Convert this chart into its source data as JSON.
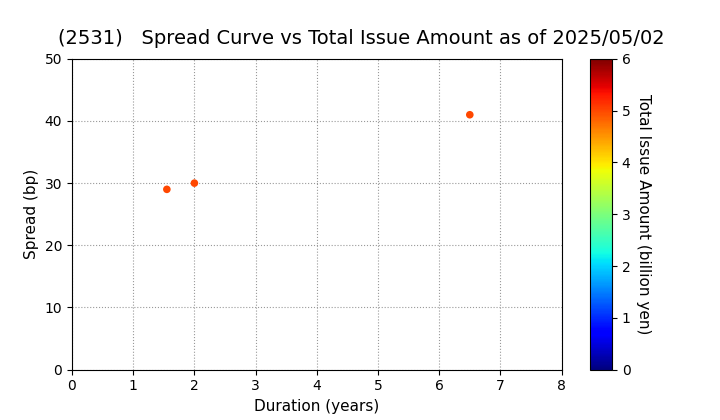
{
  "title": "(2531)   Spread Curve vs Total Issue Amount as of 2025/05/02",
  "xlabel": "Duration (years)",
  "ylabel": "Spread (bp)",
  "colorbar_label": "Total Issue Amount (billion yen)",
  "points": [
    {
      "duration": 1.55,
      "spread": 29,
      "issue_amount": 5.0
    },
    {
      "duration": 2.0,
      "spread": 30,
      "issue_amount": 5.0
    },
    {
      "duration": 6.5,
      "spread": 41,
      "issue_amount": 5.0
    }
  ],
  "xlim": [
    0,
    8
  ],
  "ylim": [
    0,
    50
  ],
  "xticks": [
    0,
    1,
    2,
    3,
    4,
    5,
    6,
    7,
    8
  ],
  "yticks": [
    0,
    10,
    20,
    30,
    40,
    50
  ],
  "colorbar_min": 0,
  "colorbar_max": 6,
  "colorbar_ticks": [
    0,
    1,
    2,
    3,
    4,
    5,
    6
  ],
  "grid_color": "#999999",
  "background_color": "#ffffff",
  "title_fontsize": 14,
  "axis_label_fontsize": 11,
  "tick_fontsize": 10,
  "marker_size": 30,
  "figsize": [
    7.2,
    4.2
  ],
  "dpi": 100
}
